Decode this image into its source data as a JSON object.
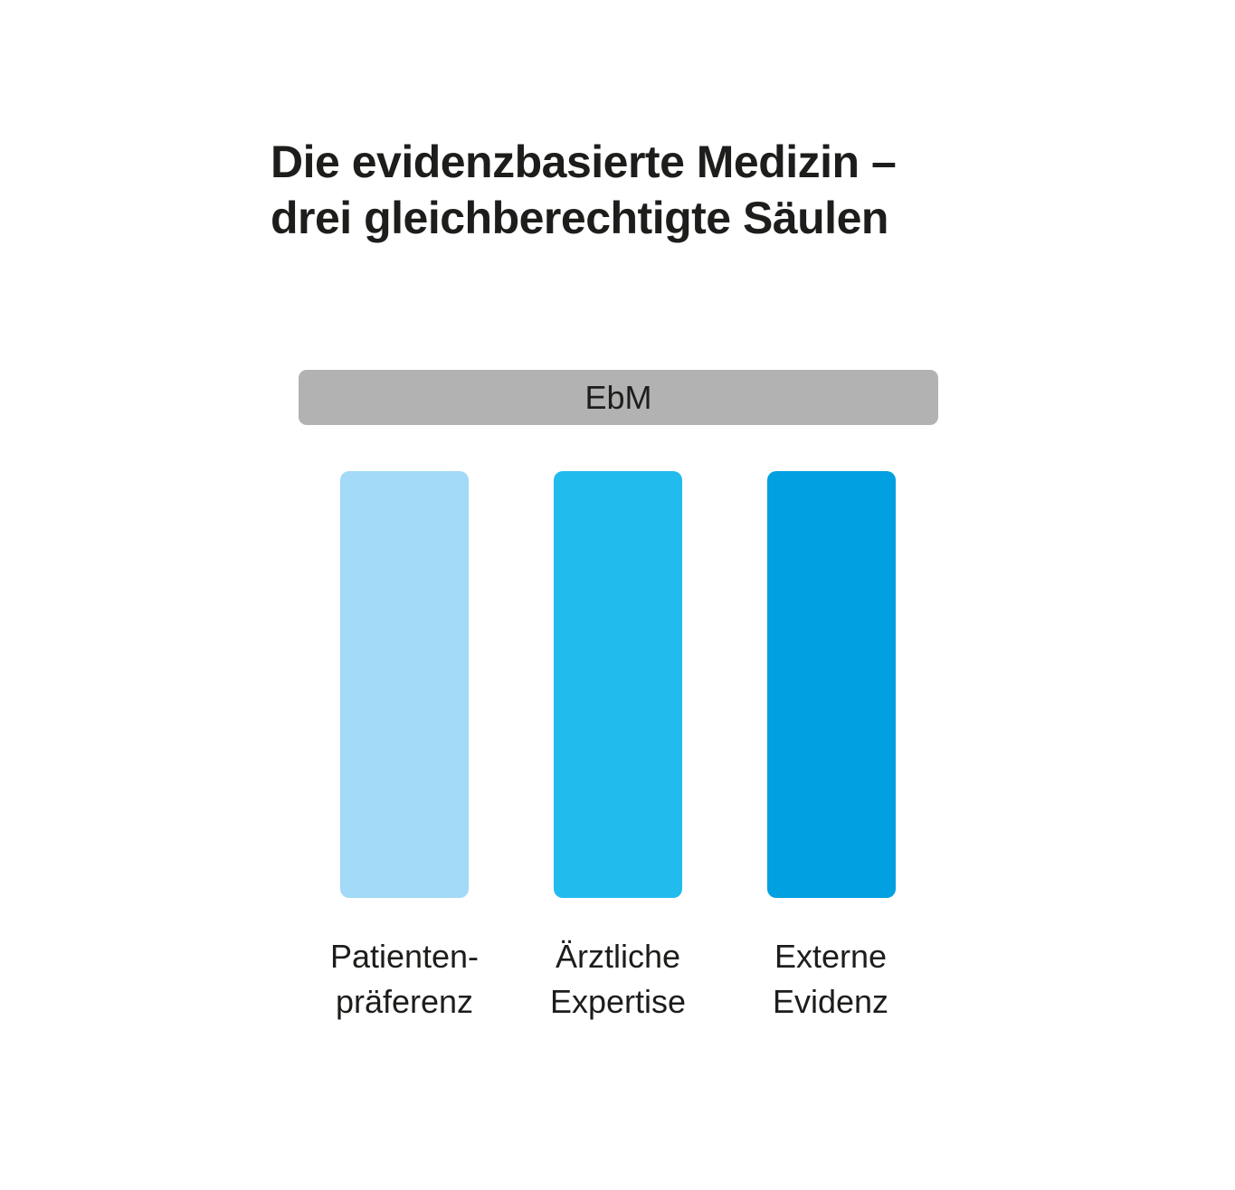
{
  "title": {
    "line1": "Die evidenzbasierte Medizin –",
    "line2": "drei gleichberechtigte Säulen"
  },
  "roof": {
    "label": "EbM",
    "color": "#b3b2b2"
  },
  "pillars": [
    {
      "line1": "Patienten-",
      "line2": "präferenz",
      "color": "#a2daf7"
    },
    {
      "line1": "Ärztliche",
      "line2": "Expertise",
      "color": "#22bbee"
    },
    {
      "line1": "Externe",
      "line2": "Evidenz",
      "color": "#00a0e1"
    }
  ]
}
